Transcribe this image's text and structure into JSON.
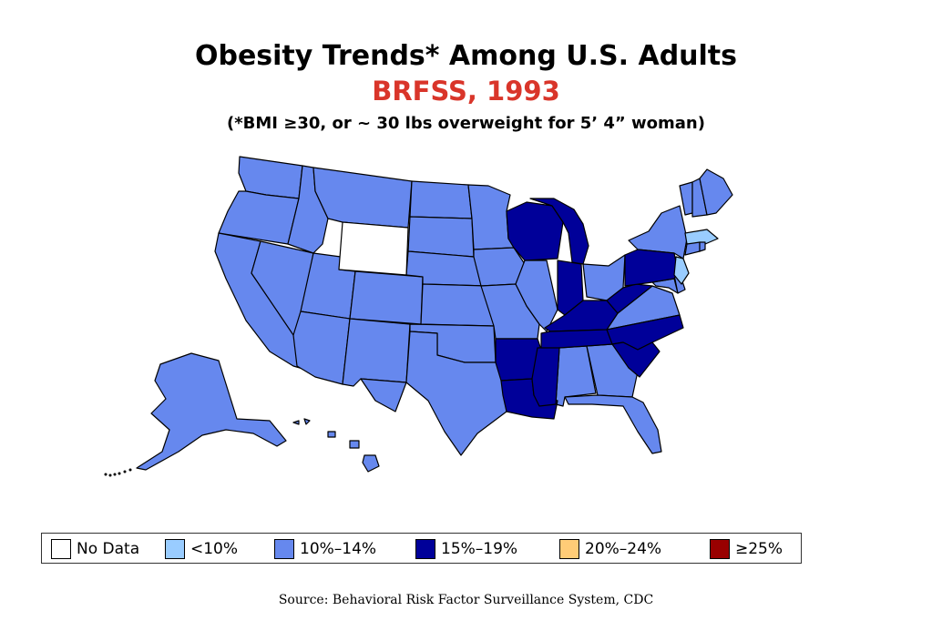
{
  "title": "Obesity Trends* Among U.S. Adults",
  "subtitle": "BRFSS, 1993",
  "note": "(*BMI ≥30, or ~ 30 lbs overweight for 5’ 4” woman)",
  "legend": [
    {
      "label": "No Data",
      "color": "#ffffff"
    },
    {
      "label": "<10%",
      "color": "#99ccff"
    },
    {
      "label": "10%–14%",
      "color": "#6688ee"
    },
    {
      "label": "15%–19%",
      "color": "#000099"
    },
    {
      "label": "20%–24%",
      "color": "#ffcc77"
    },
    {
      "label": "≥25%",
      "color": "#990000"
    }
  ],
  "source": "Source: Behavioral Risk Factor Surveillance System, CDC",
  "colors": {
    "no_data": "#ffffff",
    "lt10": "#99ccff",
    "p10_14": "#6688ee",
    "p15_19": "#000099"
  }
}
